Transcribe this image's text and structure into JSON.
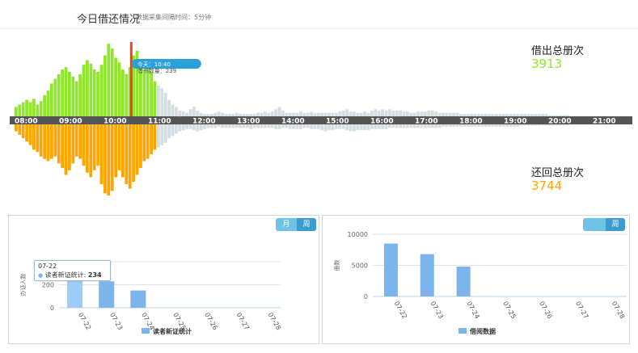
{
  "header": {
    "title": "今日借还情况",
    "subtitle": "数据采集间隔时间：5分钟"
  },
  "main_chart": {
    "time_labels": [
      "08:00",
      "09:00",
      "10:00",
      "11:00",
      "12:00",
      "13:00",
      "14:00",
      "15:00",
      "16:00",
      "17:00",
      "18:00",
      "19:00",
      "20:00",
      "21:00"
    ],
    "borrow_total_label": "借出总册次",
    "borrow_total_value": "3913",
    "return_total_label": "还回总册次",
    "return_total_value": "3744",
    "current_marker": {
      "time_label": "今天：10:40",
      "count_label": "借书数量：239"
    },
    "colors": {
      "borrow": "#8fe62c",
      "return": "#ffa500",
      "faded": "#d3dde2",
      "marker": "#e8461e",
      "axis": "#555555"
    }
  },
  "new_readers_panel": {
    "toggle": {
      "month": "月",
      "week": "周"
    },
    "y_label": "办证人数",
    "y_ticks": [
      "200",
      "0"
    ],
    "legend": "读者新证统计",
    "tooltip": {
      "date": "07-22",
      "series": "读者新证统计",
      "value": "234"
    }
  },
  "borrow_panel": {
    "toggle": {
      "week": "周"
    },
    "y_label": "册数",
    "y_ticks": [
      "10000",
      "5000",
      "0"
    ],
    "legend": "借阅数据"
  },
  "chart_data": [
    {
      "type": "bar",
      "title": "今日借还情况",
      "x_start": "08:00",
      "x_interval_minutes": 5,
      "series": [
        {
          "name": "借出总册次",
          "values": [
            8,
            10,
            12,
            14,
            12,
            15,
            10,
            13,
            18,
            22,
            28,
            32,
            36,
            40,
            42,
            38,
            34,
            30,
            36,
            44,
            48,
            45,
            40,
            38,
            44,
            52,
            62,
            58,
            50,
            46,
            40,
            36,
            42,
            52,
            56,
            48,
            40,
            44,
            38,
            30,
            26,
            24,
            20,
            14,
            10,
            8,
            5,
            4,
            3,
            6,
            8,
            5,
            3,
            2,
            2,
            2,
            3,
            4,
            3,
            2,
            2,
            2,
            3,
            2,
            2,
            2,
            2,
            2,
            3,
            3,
            4,
            3,
            4,
            6,
            8,
            5,
            3,
            3,
            3,
            3,
            4,
            3,
            3,
            4,
            3,
            3,
            3,
            3,
            3,
            3,
            3,
            4,
            5,
            6,
            4,
            4,
            3,
            3,
            4,
            3,
            5,
            6,
            5,
            6,
            5,
            6,
            5,
            5,
            5,
            4,
            4,
            3,
            3,
            4,
            4,
            4,
            5,
            5,
            4,
            3,
            3,
            3,
            3,
            3,
            3,
            2,
            2,
            2,
            2,
            2,
            2,
            2,
            2,
            2,
            2,
            2,
            2,
            2,
            2,
            2,
            2,
            2,
            2,
            2,
            2,
            2,
            2,
            2,
            2,
            2,
            1,
            1,
            1,
            1,
            1,
            1
          ]
        },
        {
          "name": "还回总册次",
          "values": [
            6,
            9,
            12,
            15,
            18,
            22,
            24,
            28,
            30,
            32,
            30,
            28,
            34,
            38,
            44,
            40,
            34,
            28,
            30,
            36,
            42,
            46,
            40,
            36,
            52,
            60,
            62,
            58,
            46,
            40,
            46,
            52,
            56,
            50,
            44,
            38,
            32,
            30,
            26,
            22,
            20,
            18,
            16,
            12,
            10,
            8,
            6,
            5,
            4,
            4,
            5,
            6,
            5,
            4,
            3,
            3,
            3,
            2,
            3,
            3,
            3,
            3,
            3,
            3,
            3,
            3,
            4,
            3,
            3,
            3,
            3,
            3,
            3,
            4,
            4,
            3,
            3,
            4,
            4,
            4,
            4,
            3,
            3,
            4,
            4,
            4,
            5,
            6,
            5,
            5,
            4,
            4,
            4,
            5,
            6,
            6,
            5,
            5,
            5,
            5,
            4,
            4,
            4,
            4,
            4,
            3,
            3,
            3,
            3,
            3,
            3,
            3,
            3,
            3,
            3,
            3,
            3,
            3,
            3,
            3,
            2,
            2,
            2,
            2,
            2,
            2,
            2,
            2,
            2,
            2,
            2,
            2,
            2,
            2,
            2,
            2,
            2,
            2,
            2,
            2,
            2,
            2,
            1,
            1,
            1,
            1,
            1,
            1,
            1,
            1,
            1,
            1,
            1,
            1,
            1,
            1
          ]
        }
      ],
      "current_time_index": 32
    },
    {
      "type": "bar",
      "title": "",
      "categories": [
        "07-22",
        "07-23",
        "07-24",
        "07-25",
        "07-26",
        "07-27",
        "07-28"
      ],
      "series": [
        {
          "name": "读者新证统计",
          "values": [
            234,
            230,
            150,
            0,
            0,
            0,
            0
          ]
        }
      ],
      "ylabel": "办证人数",
      "ylim": [
        0,
        400
      ]
    },
    {
      "type": "bar",
      "title": "",
      "categories": [
        "07-22",
        "07-23",
        "07-24",
        "07-25",
        "07-26",
        "07-27",
        "07-28"
      ],
      "series": [
        {
          "name": "借阅数据",
          "values": [
            8500,
            6800,
            4800,
            0,
            0,
            0,
            0
          ]
        }
      ],
      "ylabel": "册数",
      "ylim": [
        0,
        10000
      ]
    }
  ]
}
